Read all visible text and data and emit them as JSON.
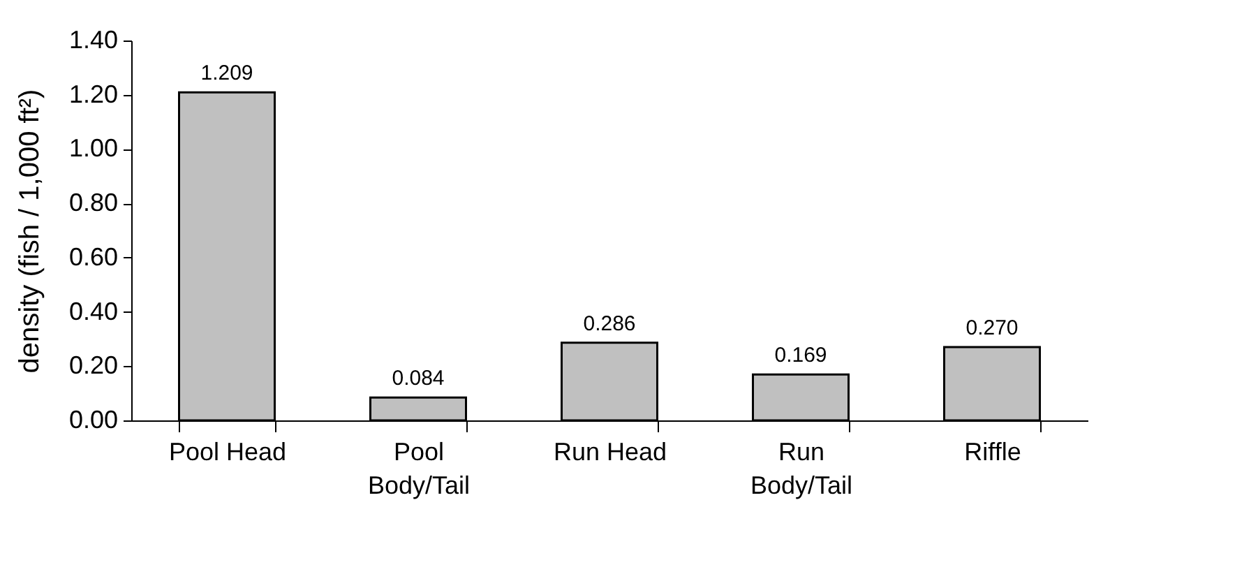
{
  "chart_data": {
    "type": "bar",
    "ylabel": "density (fish / 1,000 ft²)",
    "categories": [
      "Pool Head",
      "Pool Body/Tail",
      "Run Head",
      "Run Body/Tail",
      "Riffle"
    ],
    "values": [
      1.209,
      0.084,
      0.286,
      0.169,
      0.27
    ],
    "value_labels": [
      "1.209",
      "0.084",
      "0.286",
      "0.169",
      "0.270"
    ],
    "color": "#c0c0c0",
    "ylim": [
      0,
      1.4
    ],
    "yticks": [
      {
        "value": 0,
        "label": "0.00"
      },
      {
        "value": 0.2,
        "label": "0.20"
      },
      {
        "value": 0.4,
        "label": "0.40"
      },
      {
        "value": 0.6,
        "label": "0.60"
      },
      {
        "value": 0.8,
        "label": "0.80"
      },
      {
        "value": 1,
        "label": "1.00"
      },
      {
        "value": 1.2,
        "label": "1.20"
      },
      {
        "value": 1.4,
        "label": "1.40"
      }
    ],
    "grid": false
  }
}
